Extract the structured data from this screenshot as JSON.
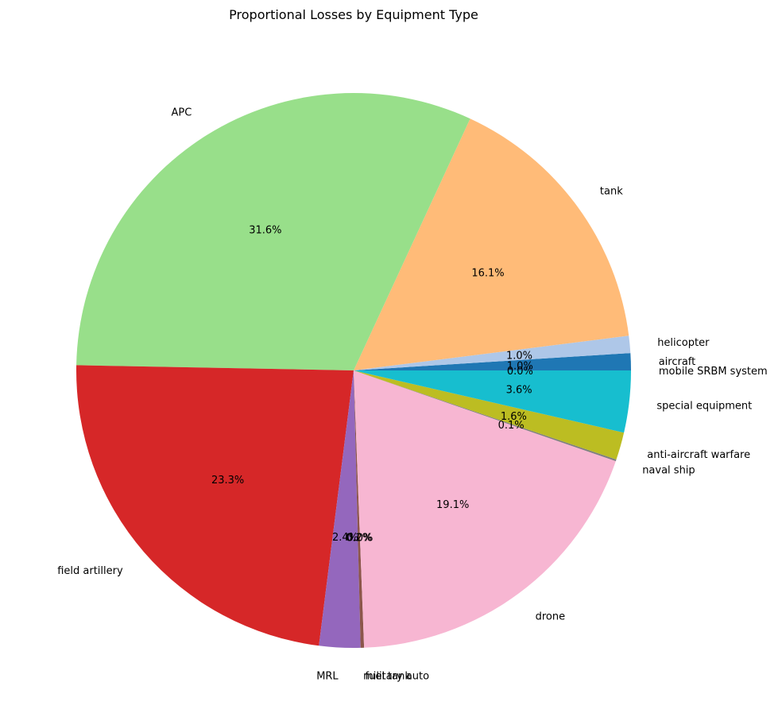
{
  "chart_data": {
    "type": "pie",
    "title": "Proportional Losses by Equipment Type",
    "start_angle_deg": 0,
    "direction": "counterclockwise",
    "slices": [
      {
        "name": "aircraft",
        "value": 1.0,
        "label": "1.0%",
        "color": "#1f77b4"
      },
      {
        "name": "helicopter",
        "value": 1.0,
        "label": "1.0%",
        "color": "#aec7e8"
      },
      {
        "name": "tank",
        "value": 16.1,
        "label": "16.1%",
        "color": "#ffbb78"
      },
      {
        "name": "APC",
        "value": 31.6,
        "label": "31.6%",
        "color": "#98df8a"
      },
      {
        "name": "field artillery",
        "value": 23.3,
        "label": "23.3%",
        "color": "#d62728"
      },
      {
        "name": "MRL",
        "value": 2.4,
        "label": "2.4%",
        "color": "#9467bd"
      },
      {
        "name": "military auto",
        "value": 0.2,
        "label": "0.2%",
        "color": "#8c564b"
      },
      {
        "name": "fuel tank",
        "value": 0.0,
        "label": "0.0%",
        "color": "#c49c94"
      },
      {
        "name": "drone",
        "value": 19.1,
        "label": "19.1%",
        "color": "#f7b6d2"
      },
      {
        "name": "naval ship",
        "value": 0.1,
        "label": "0.1%",
        "color": "#7f7f7f"
      },
      {
        "name": "anti-aircraft warfare",
        "value": 1.6,
        "label": "1.6%",
        "color": "#bcbd22"
      },
      {
        "name": "special equipment",
        "value": 3.6,
        "label": "3.6%",
        "color": "#17becf"
      },
      {
        "name": "mobile SRBM system",
        "value": 0.0,
        "label": "0.0%",
        "color": "#9edae5"
      }
    ]
  }
}
